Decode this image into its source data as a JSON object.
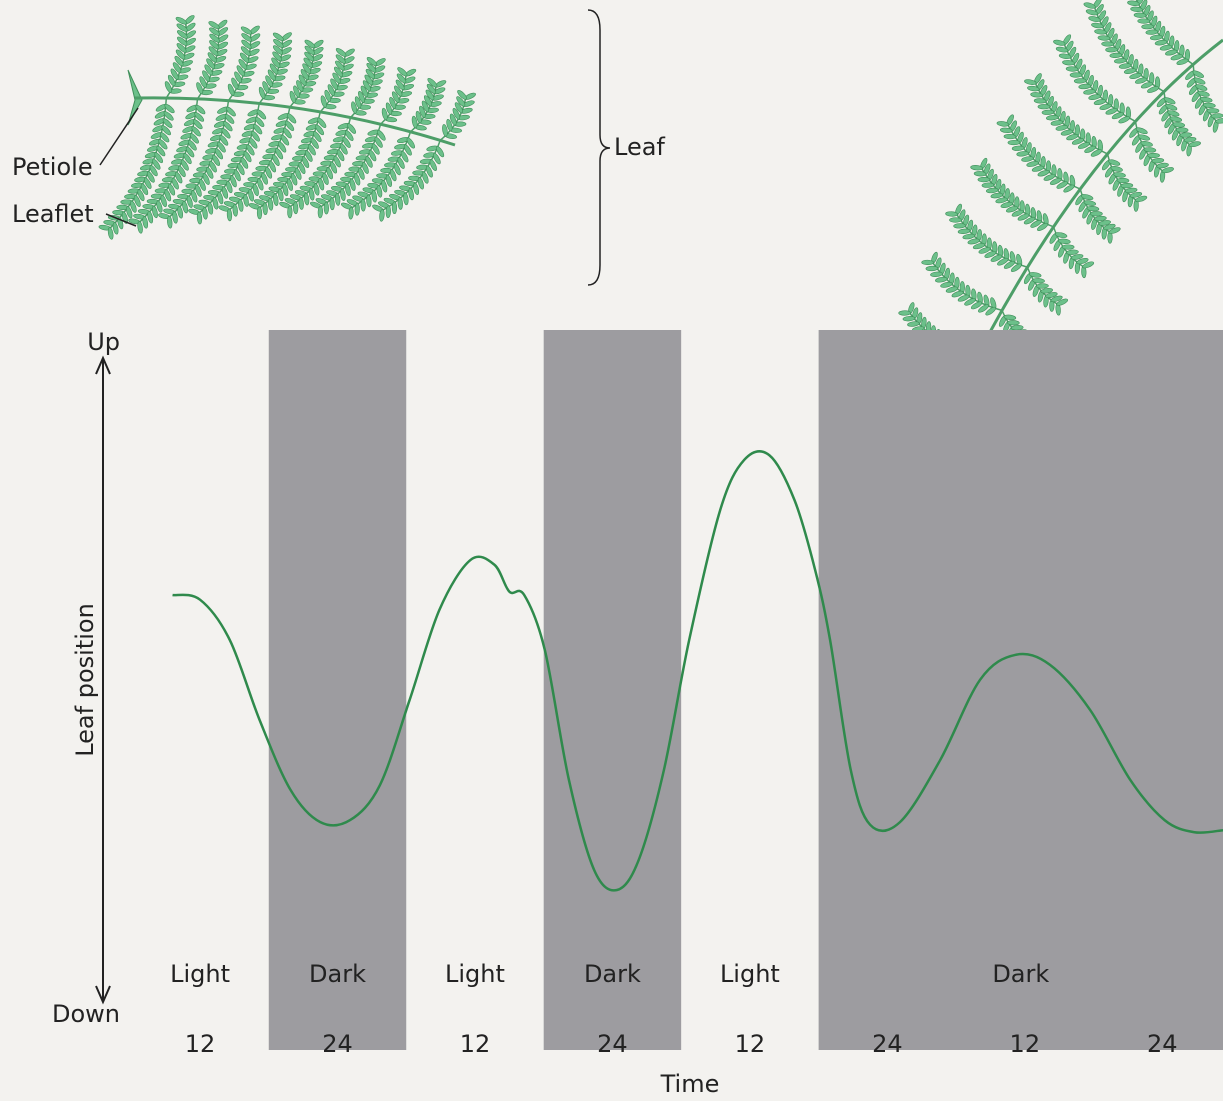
{
  "chart_data": {
    "type": "line",
    "annotations": [
      "Petiole",
      "Leaflet",
      "Leaf"
    ],
    "y_label": "Leaf position",
    "x_label": "Time",
    "xlim": [
      6,
      101.3
    ],
    "xticks": [
      12,
      24,
      {
        "value": 36,
        "label": "12"
      },
      {
        "value": 48,
        "label": "24"
      },
      {
        "value": 60,
        "label": "12"
      },
      {
        "value": 72,
        "label": "24"
      },
      {
        "value": 84,
        "label": "12"
      },
      {
        "value": 96,
        "label": "24"
      }
    ],
    "ylim": [
      0,
      100
    ],
    "yticks": [
      {
        "value": 0,
        "label": "Down"
      },
      {
        "value": 100,
        "label": "Up"
      }
    ],
    "bands": [
      {
        "label": "Light",
        "start": 6,
        "end": 18
      },
      {
        "label": "Dark",
        "start": 18,
        "end": 30
      },
      {
        "label": "Light",
        "start": 30,
        "end": 42
      },
      {
        "label": "Dark",
        "start": 42,
        "end": 54
      },
      {
        "label": "Light",
        "start": 54,
        "end": 66
      },
      {
        "label": "Dark",
        "start": 66,
        "end": 101.3
      }
    ],
    "color": "#2f8a4c",
    "x": [
      9.6,
      12,
      14.6,
      17.2,
      19.9,
      22.5,
      25.1,
      27.7,
      30.3,
      32.9,
      35.6,
      37.7,
      39,
      40.3,
      42.1,
      44.2,
      46.4,
      48.4,
      50.3,
      52.5,
      54.7,
      57.4,
      59.5,
      61.7,
      63.9,
      65.7,
      67,
      68.8,
      70.5,
      73.1,
      76.6,
      80.1,
      83.2,
      86.2,
      89.7,
      93.2,
      96.2,
      98.8,
      101.3
    ],
    "values": [
      62.5,
      61.8,
      55.8,
      43.9,
      33.5,
      28.7,
      29,
      34.2,
      46.9,
      60.3,
      67.7,
      67,
      63,
      62.5,
      54.3,
      35,
      21.6,
      18.6,
      23.1,
      36.5,
      55.8,
      75.1,
      82.6,
      83.3,
      76.6,
      66.2,
      55.8,
      36.5,
      28.3,
      28.7,
      37.9,
      49.9,
      53.6,
      52.1,
      45.4,
      35,
      29,
      27.2,
      27.5
    ]
  }
}
